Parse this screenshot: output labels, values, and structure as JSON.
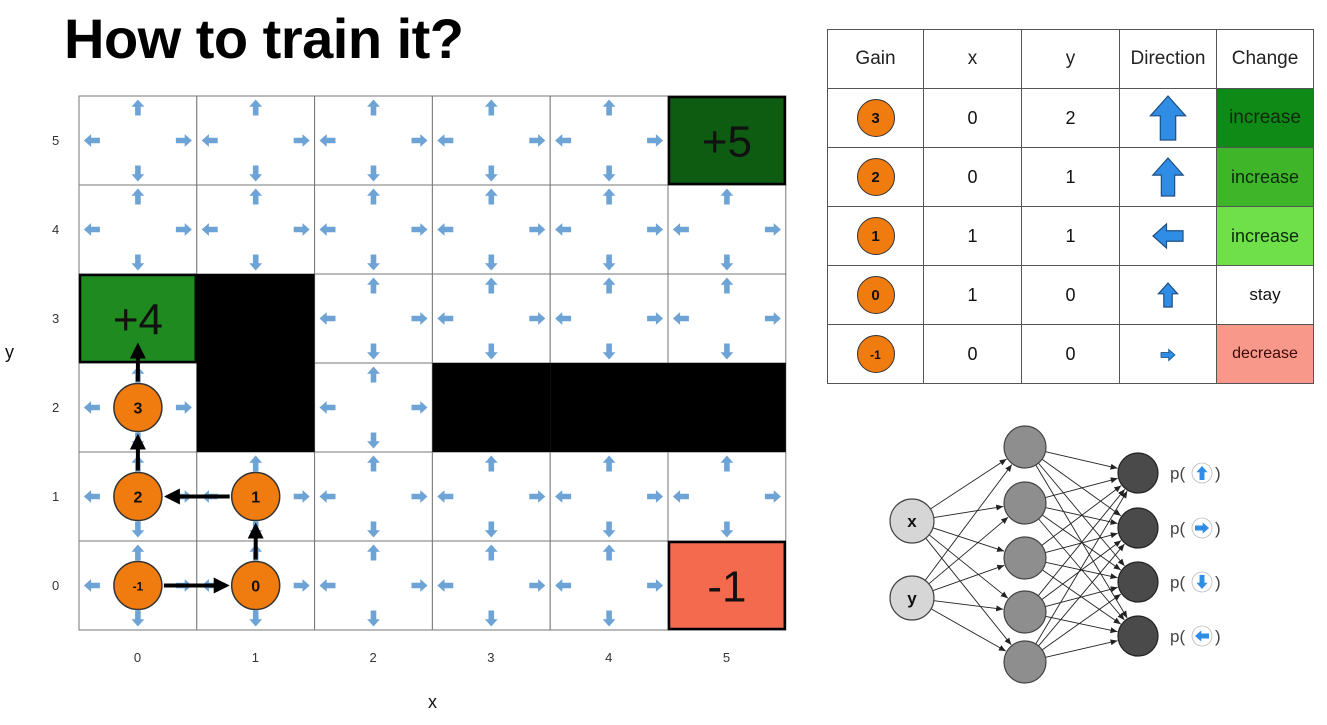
{
  "title": "How to train it?",
  "grid": {
    "cols": 6,
    "rows": 6,
    "x_ticks": [
      "0",
      "1",
      "2",
      "3",
      "4",
      "5"
    ],
    "y_ticks": [
      "0",
      "1",
      "2",
      "3",
      "4",
      "5"
    ],
    "x_label": "x",
    "y_label": "y",
    "walls": [
      [
        1,
        2
      ],
      [
        1,
        3
      ],
      [
        3,
        2
      ],
      [
        4,
        2
      ],
      [
        5,
        2
      ]
    ],
    "rewards": [
      {
        "x": 5,
        "y": 5,
        "label": "+5",
        "color": "#0d5c12"
      },
      {
        "x": 0,
        "y": 3,
        "label": "+4",
        "color": "#1f8a1f"
      },
      {
        "x": 5,
        "y": 0,
        "label": "-1",
        "color": "#f46a4e"
      }
    ],
    "path_nodes": [
      {
        "x": 0,
        "y": 0,
        "gain": "-1"
      },
      {
        "x": 1,
        "y": 0,
        "gain": "0"
      },
      {
        "x": 1,
        "y": 1,
        "gain": "1"
      },
      {
        "x": 0,
        "y": 1,
        "gain": "2"
      },
      {
        "x": 0,
        "y": 2,
        "gain": "3"
      }
    ],
    "path_end": {
      "x": 0,
      "y": 3
    },
    "arrow_color": "#6ea3d6",
    "node_color": "#f07b0e"
  },
  "table": {
    "headers": [
      "Gain",
      "x",
      "y",
      "Direction",
      "Change"
    ],
    "rows": [
      {
        "gain": "3",
        "x": "0",
        "y": "2",
        "direction": "up",
        "arrow_scale": 1.0,
        "change": "increase",
        "change_color": "#0f8a16",
        "change_text_color": "#0b2a0b"
      },
      {
        "gain": "2",
        "x": "0",
        "y": "1",
        "direction": "up",
        "arrow_scale": 0.85,
        "change": "increase",
        "change_color": "#3fb52a",
        "change_text_color": "#0b2a0b"
      },
      {
        "gain": "1",
        "x": "1",
        "y": "1",
        "direction": "left",
        "arrow_scale": 0.7,
        "change": "increase",
        "change_color": "#6fe04a",
        "change_text_color": "#0b2a0b"
      },
      {
        "gain": "0",
        "x": "1",
        "y": "0",
        "direction": "up",
        "arrow_scale": 0.55,
        "change": "stay",
        "change_color": "#ffffff",
        "change_text_color": "#111111"
      },
      {
        "gain": "-1",
        "x": "0",
        "y": "0",
        "direction": "right",
        "arrow_scale": 0.3,
        "change": "decrease",
        "change_color": "#f7988a",
        "change_text_color": "#3a0b0b"
      }
    ],
    "arrow_color": "#2f8de6"
  },
  "network": {
    "inputs": [
      "x",
      "y"
    ],
    "hidden_count": 5,
    "outputs": [
      {
        "prefix": "p(",
        "direction": "up",
        "suffix": ")"
      },
      {
        "prefix": "p(",
        "direction": "right",
        "suffix": ")"
      },
      {
        "prefix": "p(",
        "direction": "down",
        "suffix": ")"
      },
      {
        "prefix": "p(",
        "direction": "left",
        "suffix": ")"
      }
    ],
    "input_color": "#d6d6d6",
    "hidden_color": "#8e8e8e",
    "output_color": "#4a4a4a",
    "arrow_color": "#2f8de6"
  }
}
